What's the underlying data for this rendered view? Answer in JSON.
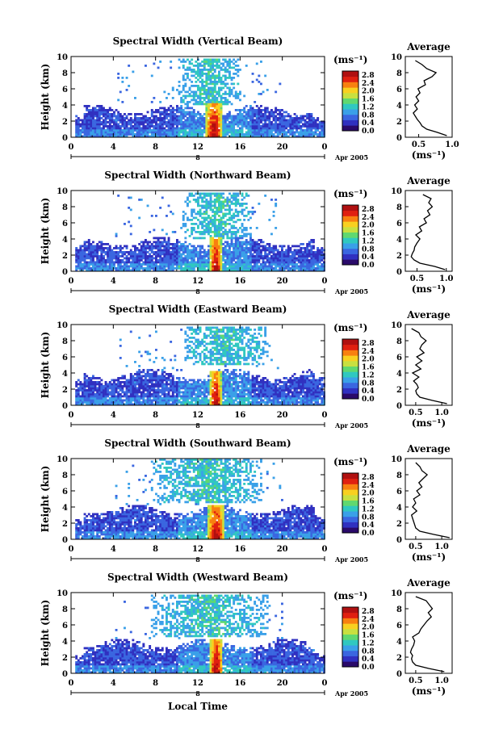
{
  "figure": {
    "xlabel": "Local Time",
    "date_label": "Apr 2005",
    "day_label": "8",
    "unit_label": "(ms⁻¹)",
    "avg_title": "Average",
    "avg_xlabel": "(ms⁻¹)",
    "colors": {
      "colormap": [
        "#2a0a6a",
        "#3030c0",
        "#3a66e0",
        "#3aa0e8",
        "#30c8c0",
        "#60d870",
        "#c8e040",
        "#f8d020",
        "#f88010",
        "#e02010",
        "#b01010"
      ]
    }
  },
  "chart_data": [
    {
      "type": "heatmap",
      "title": "Spectral Width (Vertical Beam)",
      "xlabel": "Local Time",
      "ylabel": "Height (km)",
      "xlim": [
        0,
        24
      ],
      "ylim": [
        0,
        10
      ],
      "xticks": [
        "0",
        "4",
        "8",
        "12",
        "16",
        "20",
        "0"
      ],
      "yticks": [
        "0",
        "2",
        "4",
        "6",
        "8",
        "10"
      ],
      "colorbar": {
        "label": "(ms⁻¹)",
        "ticks": [
          "0.0",
          "0.4",
          "0.8",
          "1.2",
          "1.6",
          "2.0",
          "2.4",
          "2.8"
        ],
        "range": [
          0,
          3.0
        ]
      },
      "features": {
        "bl_top": 3.4,
        "convection_hours": [
          12.6,
          14.3
        ],
        "upper_layer_hours": [
          10,
          16
        ],
        "upper_layer_km": [
          4,
          9.5
        ]
      },
      "average_profile": {
        "title": "Average",
        "xlabel": "(ms⁻¹)",
        "ylabel": "",
        "xlim": [
          0.3,
          1.0
        ],
        "xticks": [
          "0.5",
          "1.0"
        ],
        "yticks": [
          "0",
          "2",
          "4",
          "6",
          "8",
          "10"
        ],
        "height_km": [
          0.2,
          0.6,
          1.0,
          1.4,
          1.8,
          2.2,
          2.6,
          3.0,
          3.5,
          4.0,
          4.5,
          5.0,
          5.5,
          6.0,
          6.5,
          7.0,
          7.5,
          8.0,
          8.5,
          9.0,
          9.5
        ],
        "value": [
          0.92,
          0.78,
          0.62,
          0.55,
          0.52,
          0.48,
          0.45,
          0.42,
          0.48,
          0.44,
          0.5,
          0.46,
          0.52,
          0.49,
          0.6,
          0.58,
          0.7,
          0.76,
          0.62,
          0.55,
          0.45
        ]
      }
    },
    {
      "type": "heatmap",
      "title": "Spectral Width (Northward Beam)",
      "xlabel": "Local Time",
      "ylabel": "Height (km)",
      "xlim": [
        0,
        24
      ],
      "ylim": [
        0,
        10
      ],
      "xticks": [
        "0",
        "4",
        "8",
        "12",
        "16",
        "20",
        "0"
      ],
      "yticks": [
        "0",
        "2",
        "4",
        "6",
        "8",
        "10"
      ],
      "colorbar": {
        "label": "(ms⁻¹)",
        "ticks": [
          "0.0",
          "0.4",
          "0.8",
          "1.2",
          "1.6",
          "2.0",
          "2.4",
          "2.8"
        ],
        "range": [
          0,
          3.0
        ]
      },
      "features": {
        "bl_top": 3.6,
        "convection_hours": [
          13.0,
          14.2
        ],
        "upper_layer_hours": [
          10.5,
          17
        ],
        "upper_layer_km": [
          4,
          9.5
        ]
      },
      "average_profile": {
        "title": "Average",
        "xlabel": "(ms⁻¹)",
        "ylabel": "",
        "xlim": [
          0.3,
          1.1
        ],
        "xticks": [
          "0.5",
          "1.0"
        ],
        "yticks": [
          "0",
          "2",
          "4",
          "6",
          "8",
          "10"
        ],
        "height_km": [
          0.2,
          0.6,
          1.0,
          1.4,
          1.8,
          2.2,
          2.6,
          3.0,
          3.5,
          4.0,
          4.5,
          5.0,
          5.5,
          6.0,
          6.5,
          7.0,
          7.5,
          8.0,
          8.5,
          9.0,
          9.5
        ],
        "value": [
          0.98,
          0.8,
          0.55,
          0.45,
          0.4,
          0.42,
          0.45,
          0.46,
          0.5,
          0.55,
          0.48,
          0.58,
          0.54,
          0.66,
          0.62,
          0.72,
          0.68,
          0.76,
          0.7,
          0.74,
          0.6
        ]
      }
    },
    {
      "type": "heatmap",
      "title": "Spectral Width (Eastward Beam)",
      "xlabel": "Local Time",
      "ylabel": "Height (km)",
      "xlim": [
        0,
        24
      ],
      "ylim": [
        0,
        10
      ],
      "xticks": [
        "0",
        "4",
        "8",
        "12",
        "16",
        "20",
        "0"
      ],
      "yticks": [
        "0",
        "2",
        "4",
        "6",
        "8",
        "10"
      ],
      "colorbar": {
        "label": "(ms⁻¹)",
        "ticks": [
          "0.0",
          "0.4",
          "0.8",
          "1.2",
          "1.6",
          "2.0",
          "2.4",
          "2.8"
        ],
        "range": [
          0,
          3.0
        ]
      },
      "features": {
        "bl_top": 3.8,
        "convection_hours": [
          13.0,
          14.2
        ],
        "upper_layer_hours": [
          10.5,
          18.5
        ],
        "upper_layer_km": [
          5,
          9.5
        ]
      },
      "average_profile": {
        "title": "Average",
        "xlabel": "(ms⁻¹)",
        "ylabel": "",
        "xlim": [
          0.3,
          1.2
        ],
        "xticks": [
          "0.5",
          "1.0"
        ],
        "yticks": [
          "0",
          "2",
          "4",
          "6",
          "8",
          "10"
        ],
        "height_km": [
          0.2,
          0.6,
          1.0,
          1.4,
          1.8,
          2.2,
          2.6,
          3.0,
          3.5,
          4.0,
          4.5,
          5.0,
          5.5,
          6.0,
          6.5,
          7.0,
          7.5,
          8.0,
          8.5,
          9.0,
          9.5
        ],
        "value": [
          1.1,
          0.82,
          0.58,
          0.52,
          0.5,
          0.55,
          0.52,
          0.46,
          0.56,
          0.44,
          0.6,
          0.5,
          0.62,
          0.52,
          0.66,
          0.58,
          0.62,
          0.7,
          0.6,
          0.56,
          0.42
        ]
      }
    },
    {
      "type": "heatmap",
      "title": "Spectral Width (Southward Beam)",
      "xlabel": "Local Time",
      "ylabel": "Height (km)",
      "xlim": [
        0,
        24
      ],
      "ylim": [
        0,
        10
      ],
      "xticks": [
        "0",
        "4",
        "8",
        "12",
        "16",
        "20",
        "0"
      ],
      "yticks": [
        "0",
        "2",
        "4",
        "6",
        "8",
        "10"
      ],
      "colorbar": {
        "label": "(ms⁻¹)",
        "ticks": [
          "0.0",
          "0.4",
          "0.8",
          "1.2",
          "1.6",
          "2.0",
          "2.4",
          "2.8"
        ],
        "range": [
          0,
          3.0
        ]
      },
      "features": {
        "bl_top": 3.6,
        "convection_hours": [
          12.8,
          14.5
        ],
        "upper_layer_hours": [
          7.5,
          18
        ],
        "upper_layer_km": [
          4.5,
          9.8
        ]
      },
      "average_profile": {
        "title": "Average",
        "xlabel": "(ms⁻¹)",
        "ylabel": "",
        "xlim": [
          0.3,
          1.2
        ],
        "xticks": [
          "0.5",
          "1.0"
        ],
        "yticks": [
          "0",
          "2",
          "4",
          "6",
          "8",
          "10"
        ],
        "height_km": [
          0.2,
          0.6,
          1.0,
          1.4,
          1.8,
          2.2,
          2.6,
          3.0,
          3.5,
          4.0,
          4.5,
          5.0,
          5.5,
          6.0,
          6.5,
          7.0,
          7.5,
          8.0,
          8.5,
          9.0,
          9.5
        ],
        "value": [
          1.15,
          0.85,
          0.58,
          0.5,
          0.48,
          0.46,
          0.44,
          0.42,
          0.52,
          0.44,
          0.5,
          0.46,
          0.58,
          0.52,
          0.62,
          0.56,
          0.64,
          0.72,
          0.62,
          0.58,
          0.5
        ]
      }
    },
    {
      "type": "heatmap",
      "title": "Spectral Width (Westward Beam)",
      "xlabel": "Local Time",
      "ylabel": "Height (km)",
      "xlim": [
        0,
        24
      ],
      "ylim": [
        0,
        10
      ],
      "xticks": [
        "0",
        "4",
        "8",
        "12",
        "16",
        "20",
        "0"
      ],
      "yticks": [
        "0",
        "2",
        "4",
        "6",
        "8",
        "10"
      ],
      "colorbar": {
        "label": "(ms⁻¹)",
        "ticks": [
          "0.0",
          "0.4",
          "0.8",
          "1.2",
          "1.6",
          "2.0",
          "2.4",
          "2.8"
        ],
        "range": [
          0,
          3.0
        ]
      },
      "features": {
        "bl_top": 3.6,
        "convection_hours": [
          13.0,
          14.3
        ],
        "upper_layer_hours": [
          7.5,
          18.5
        ],
        "upper_layer_km": [
          4.5,
          9.5
        ]
      },
      "average_profile": {
        "title": "Average",
        "xlabel": "(ms⁻¹)",
        "ylabel": "",
        "xlim": [
          0.3,
          1.2
        ],
        "xticks": [
          "0.5",
          "1.0"
        ],
        "yticks": [
          "0",
          "2",
          "4",
          "6",
          "8",
          "10"
        ],
        "height_km": [
          0.2,
          0.6,
          1.0,
          1.4,
          1.8,
          2.2,
          2.6,
          3.0,
          3.5,
          4.0,
          4.5,
          5.0,
          5.5,
          6.0,
          6.5,
          7.0,
          7.5,
          8.0,
          8.5,
          9.0,
          9.5
        ],
        "value": [
          1.05,
          0.75,
          0.5,
          0.44,
          0.42,
          0.44,
          0.4,
          0.42,
          0.46,
          0.48,
          0.44,
          0.56,
          0.6,
          0.66,
          0.72,
          0.8,
          0.74,
          0.82,
          0.76,
          0.7,
          0.5
        ]
      }
    }
  ]
}
